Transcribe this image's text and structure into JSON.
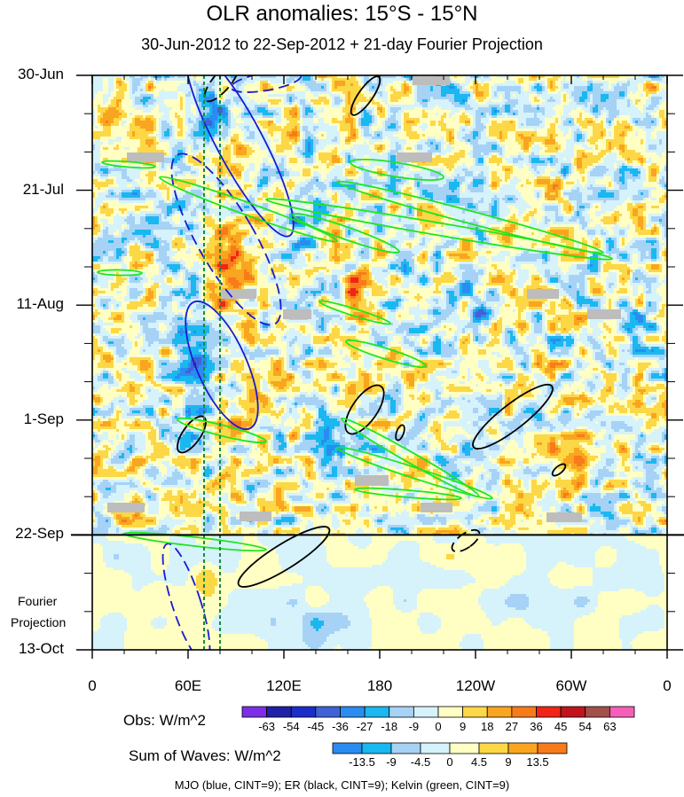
{
  "chart_data": {
    "type": "heatmap",
    "title": "OLR anomalies: 15°S - 15°N",
    "subtitle": "30-Jun-2012 to 22-Sep-2012 + 21-day Fourier Projection",
    "x_tick_labels": [
      "0",
      "60E",
      "120E",
      "180",
      "120W",
      "60W",
      "0"
    ],
    "x_tick_degrees_east": [
      0,
      60,
      120,
      180,
      240,
      300,
      360
    ],
    "y_tick_labels": [
      "30-Jun",
      "21-Jul",
      "11-Aug",
      "1-Sep",
      "22-Sep",
      "13-Oct"
    ],
    "y_tick_dates": [
      "2012-06-30",
      "2012-07-21",
      "2012-08-11",
      "2012-09-01",
      "2012-09-22",
      "2012-10-13"
    ],
    "observed_end_date": "2012-09-22",
    "projection_label_line1": "Fourier",
    "projection_label_line2": "Projection",
    "reference_lines_lon": [
      70,
      80
    ],
    "obs_colorbar": {
      "title": "Obs: W/m^2",
      "levels": [
        "-63",
        "-54",
        "-45",
        "-36",
        "-27",
        "-18",
        "-9",
        "0",
        "9",
        "18",
        "27",
        "36",
        "45",
        "54",
        "63"
      ],
      "colors": [
        "#7d2ee6",
        "#2020a8",
        "#1b2ec8",
        "#3f63d6",
        "#2a8cf0",
        "#19b8f0",
        "#a6d2f5",
        "#d6f2fb",
        "#ffffc4",
        "#fcd746",
        "#f9a51f",
        "#f87b1b",
        "#f02516",
        "#c0151d",
        "#a2504a",
        "#f55fb9"
      ]
    },
    "waves_colorbar": {
      "title": "Sum of Waves: W/m^2",
      "levels": [
        "-13.5",
        "-9",
        "-4.5",
        "0",
        "4.5",
        "9",
        "13.5"
      ],
      "colors": [
        "#2a8cf0",
        "#19b8f0",
        "#a6d2f5",
        "#d6f2fb",
        "#ffffc4",
        "#fcd746",
        "#f9a51f",
        "#f87b1b"
      ]
    },
    "footnote": "MJO (blue, CINT=9); ER (black, CINT=9); Kelvin (green, CINT=9)",
    "wave_colors": {
      "mjo": "#1a1ad0",
      "er": "#000000",
      "kelvin": "#1ee61e",
      "reference": "#1a8a3a"
    }
  }
}
